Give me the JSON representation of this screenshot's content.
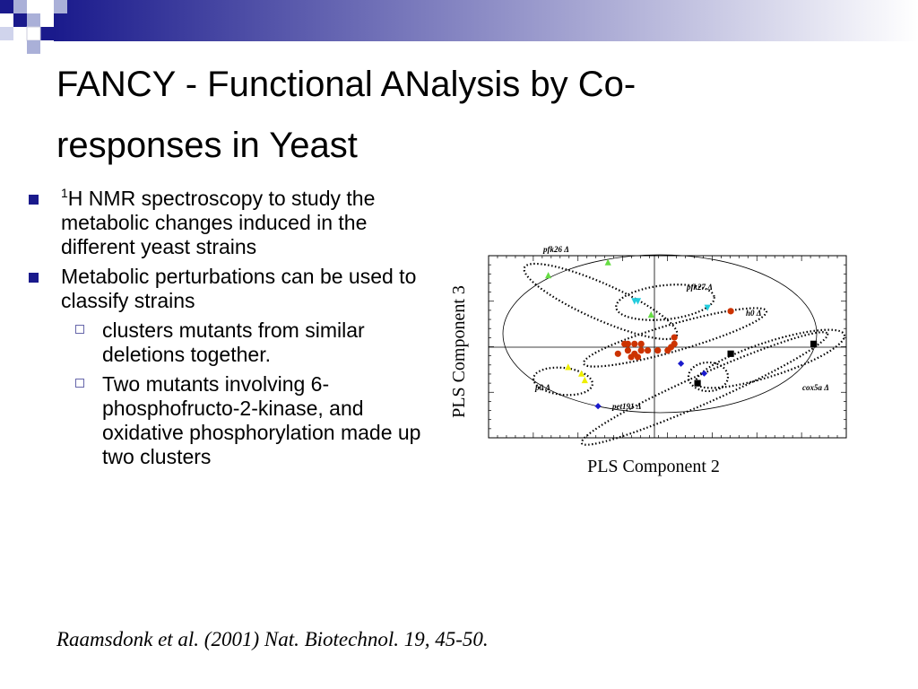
{
  "slide": {
    "title": "FANCY - Functional ANalysis by Co-responses in Yeast",
    "bullets": [
      {
        "sup": "1",
        "text": "H NMR spectroscopy to study the metabolic changes induced in the different yeast strains"
      },
      {
        "text": "Metabolic perturbations can be used to classify strains"
      }
    ],
    "sub_bullets": [
      {
        "text": "clusters mutants from similar deletions together."
      },
      {
        "text": "Two mutants involving 6-phosphofructo-2-kinase, and oxidative phosphorylation made up two clusters"
      }
    ],
    "citation": "Raamsdonk et al. (2001) Nat. Biotechnol. 19, 45-50.",
    "colors": {
      "title_bar_accent": "#1a1a8c",
      "bullet": "#1a1a8c"
    }
  },
  "chart_data": {
    "type": "scatter",
    "xlabel": "PLS Component 2",
    "ylabel": "PLS Component 3",
    "grid": false,
    "cluster_labels": [
      "pfk26 Δ",
      "pfk27 Δ",
      "h0 Δ",
      "p0 Δ",
      "pet191 Δ",
      "cox5a Δ"
    ],
    "series": [
      {
        "marker": "triangle-up",
        "color": "#66dd44",
        "points": [
          [
            -3.2,
            2.2
          ],
          [
            -1.4,
            2.6
          ],
          [
            -0.1,
            1.0
          ]
        ]
      },
      {
        "marker": "triangle-down",
        "color": "#22ccdd",
        "points": [
          [
            -0.6,
            1.4
          ],
          [
            -0.5,
            1.4
          ],
          [
            1.6,
            1.2
          ]
        ]
      },
      {
        "marker": "circle",
        "color": "#cc3300",
        "points": [
          [
            -0.9,
            0.1
          ],
          [
            -0.8,
            0.1
          ],
          [
            -0.6,
            0.1
          ],
          [
            -0.4,
            0.1
          ],
          [
            -0.8,
            -0.1
          ],
          [
            -0.6,
            -0.2
          ],
          [
            -0.4,
            -0.1
          ],
          [
            -0.2,
            -0.1
          ],
          [
            0.1,
            -0.1
          ],
          [
            0.4,
            -0.1
          ],
          [
            0.5,
            0.0
          ],
          [
            0.6,
            0.1
          ],
          [
            0.6,
            0.3
          ],
          [
            -0.7,
            -0.3
          ],
          [
            -1.1,
            -0.2
          ],
          [
            -0.5,
            -0.3
          ],
          [
            2.3,
            1.1
          ]
        ]
      },
      {
        "marker": "triangle-up",
        "color": "#eeee00",
        "points": [
          [
            -2.6,
            -0.6
          ],
          [
            -2.2,
            -0.8
          ],
          [
            -2.1,
            -1.0
          ]
        ]
      },
      {
        "marker": "diamond",
        "color": "#1a1acc",
        "points": [
          [
            0.8,
            -0.5
          ],
          [
            1.5,
            -0.8
          ],
          [
            -1.7,
            -1.8
          ]
        ]
      },
      {
        "marker": "square",
        "color": "#000000",
        "points": [
          [
            2.3,
            -0.2
          ],
          [
            4.8,
            0.1
          ],
          [
            1.3,
            -1.1
          ]
        ]
      }
    ]
  }
}
